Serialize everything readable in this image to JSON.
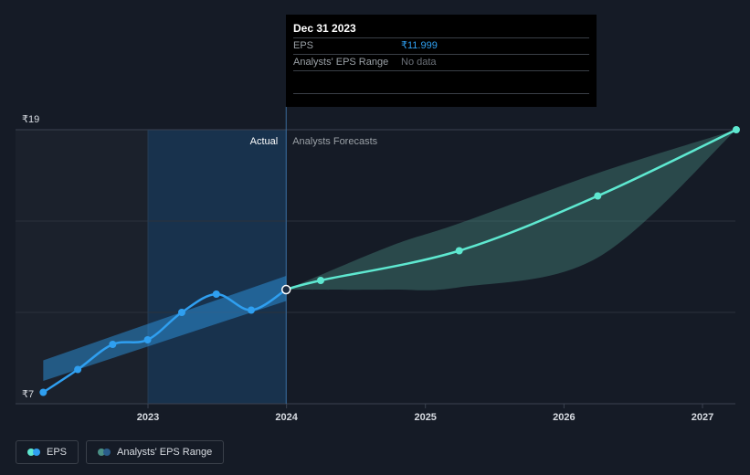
{
  "chart_data": {
    "type": "line",
    "y_ticks": [
      "₹19",
      "₹7"
    ],
    "ylim": [
      7,
      19
    ],
    "x_ticks": [
      "2023",
      "2024",
      "2025",
      "2026",
      "2027"
    ],
    "dividers": {
      "actual_label": "Actual",
      "forecast_label": "Analysts Forecasts"
    },
    "series": [
      {
        "name": "EPS",
        "kind": "actual",
        "color": "#2f9ff0",
        "points": [
          [
            "2022-03-31",
            7.5
          ],
          [
            "2022-06-30",
            8.5
          ],
          [
            "2022-09-30",
            9.6
          ],
          [
            "2022-12-31",
            9.8
          ],
          [
            "2023-03-31",
            11.0
          ],
          [
            "2023-06-30",
            11.8
          ],
          [
            "2023-09-30",
            11.1
          ],
          [
            "2023-12-31",
            11.999
          ]
        ]
      },
      {
        "name": "EPS",
        "kind": "forecast",
        "color": "#5ee8d0",
        "points": [
          [
            "2023-12-31",
            11.999
          ],
          [
            "2024-03-31",
            12.4
          ],
          [
            "2025-03-31",
            13.7
          ],
          [
            "2026-03-31",
            16.1
          ],
          [
            "2027-03-31",
            19.0
          ]
        ]
      }
    ],
    "range_actual": {
      "name": "Analysts' EPS Range",
      "color": "#2f9ff0",
      "upper": [
        [
          "2022-03-31",
          8.9
        ],
        [
          "2023-12-31",
          12.6
        ]
      ],
      "lower": [
        [
          "2022-03-31",
          8.0
        ],
        [
          "2023-12-31",
          11.5
        ]
      ]
    },
    "range_forecast": {
      "name": "Analysts' EPS Range",
      "color": "#4a8f85",
      "upper": [
        [
          "2023-12-31",
          11.999
        ],
        [
          "2024-09-30",
          13.9
        ],
        [
          "2025-03-31",
          14.9
        ],
        [
          "2026-03-31",
          17.1
        ],
        [
          "2027-03-31",
          19.0
        ]
      ],
      "lower": [
        [
          "2023-12-31",
          11.999
        ],
        [
          "2024-09-30",
          12.0
        ],
        [
          "2025-03-31",
          12.1
        ],
        [
          "2026-03-31",
          13.4
        ],
        [
          "2027-03-31",
          19.0
        ]
      ]
    }
  },
  "tooltip": {
    "date": "Dec 31 2023",
    "eps_label": "EPS",
    "eps_value": "₹11.999",
    "range_label": "Analysts' EPS Range",
    "range_value": "No data"
  },
  "legend": [
    {
      "label": "EPS",
      "colors": [
        "#5ee8d0",
        "#2f9ff0"
      ]
    },
    {
      "label": "Analysts' EPS Range",
      "colors": [
        "#4a8f85",
        "#2a5c8a"
      ]
    }
  ]
}
